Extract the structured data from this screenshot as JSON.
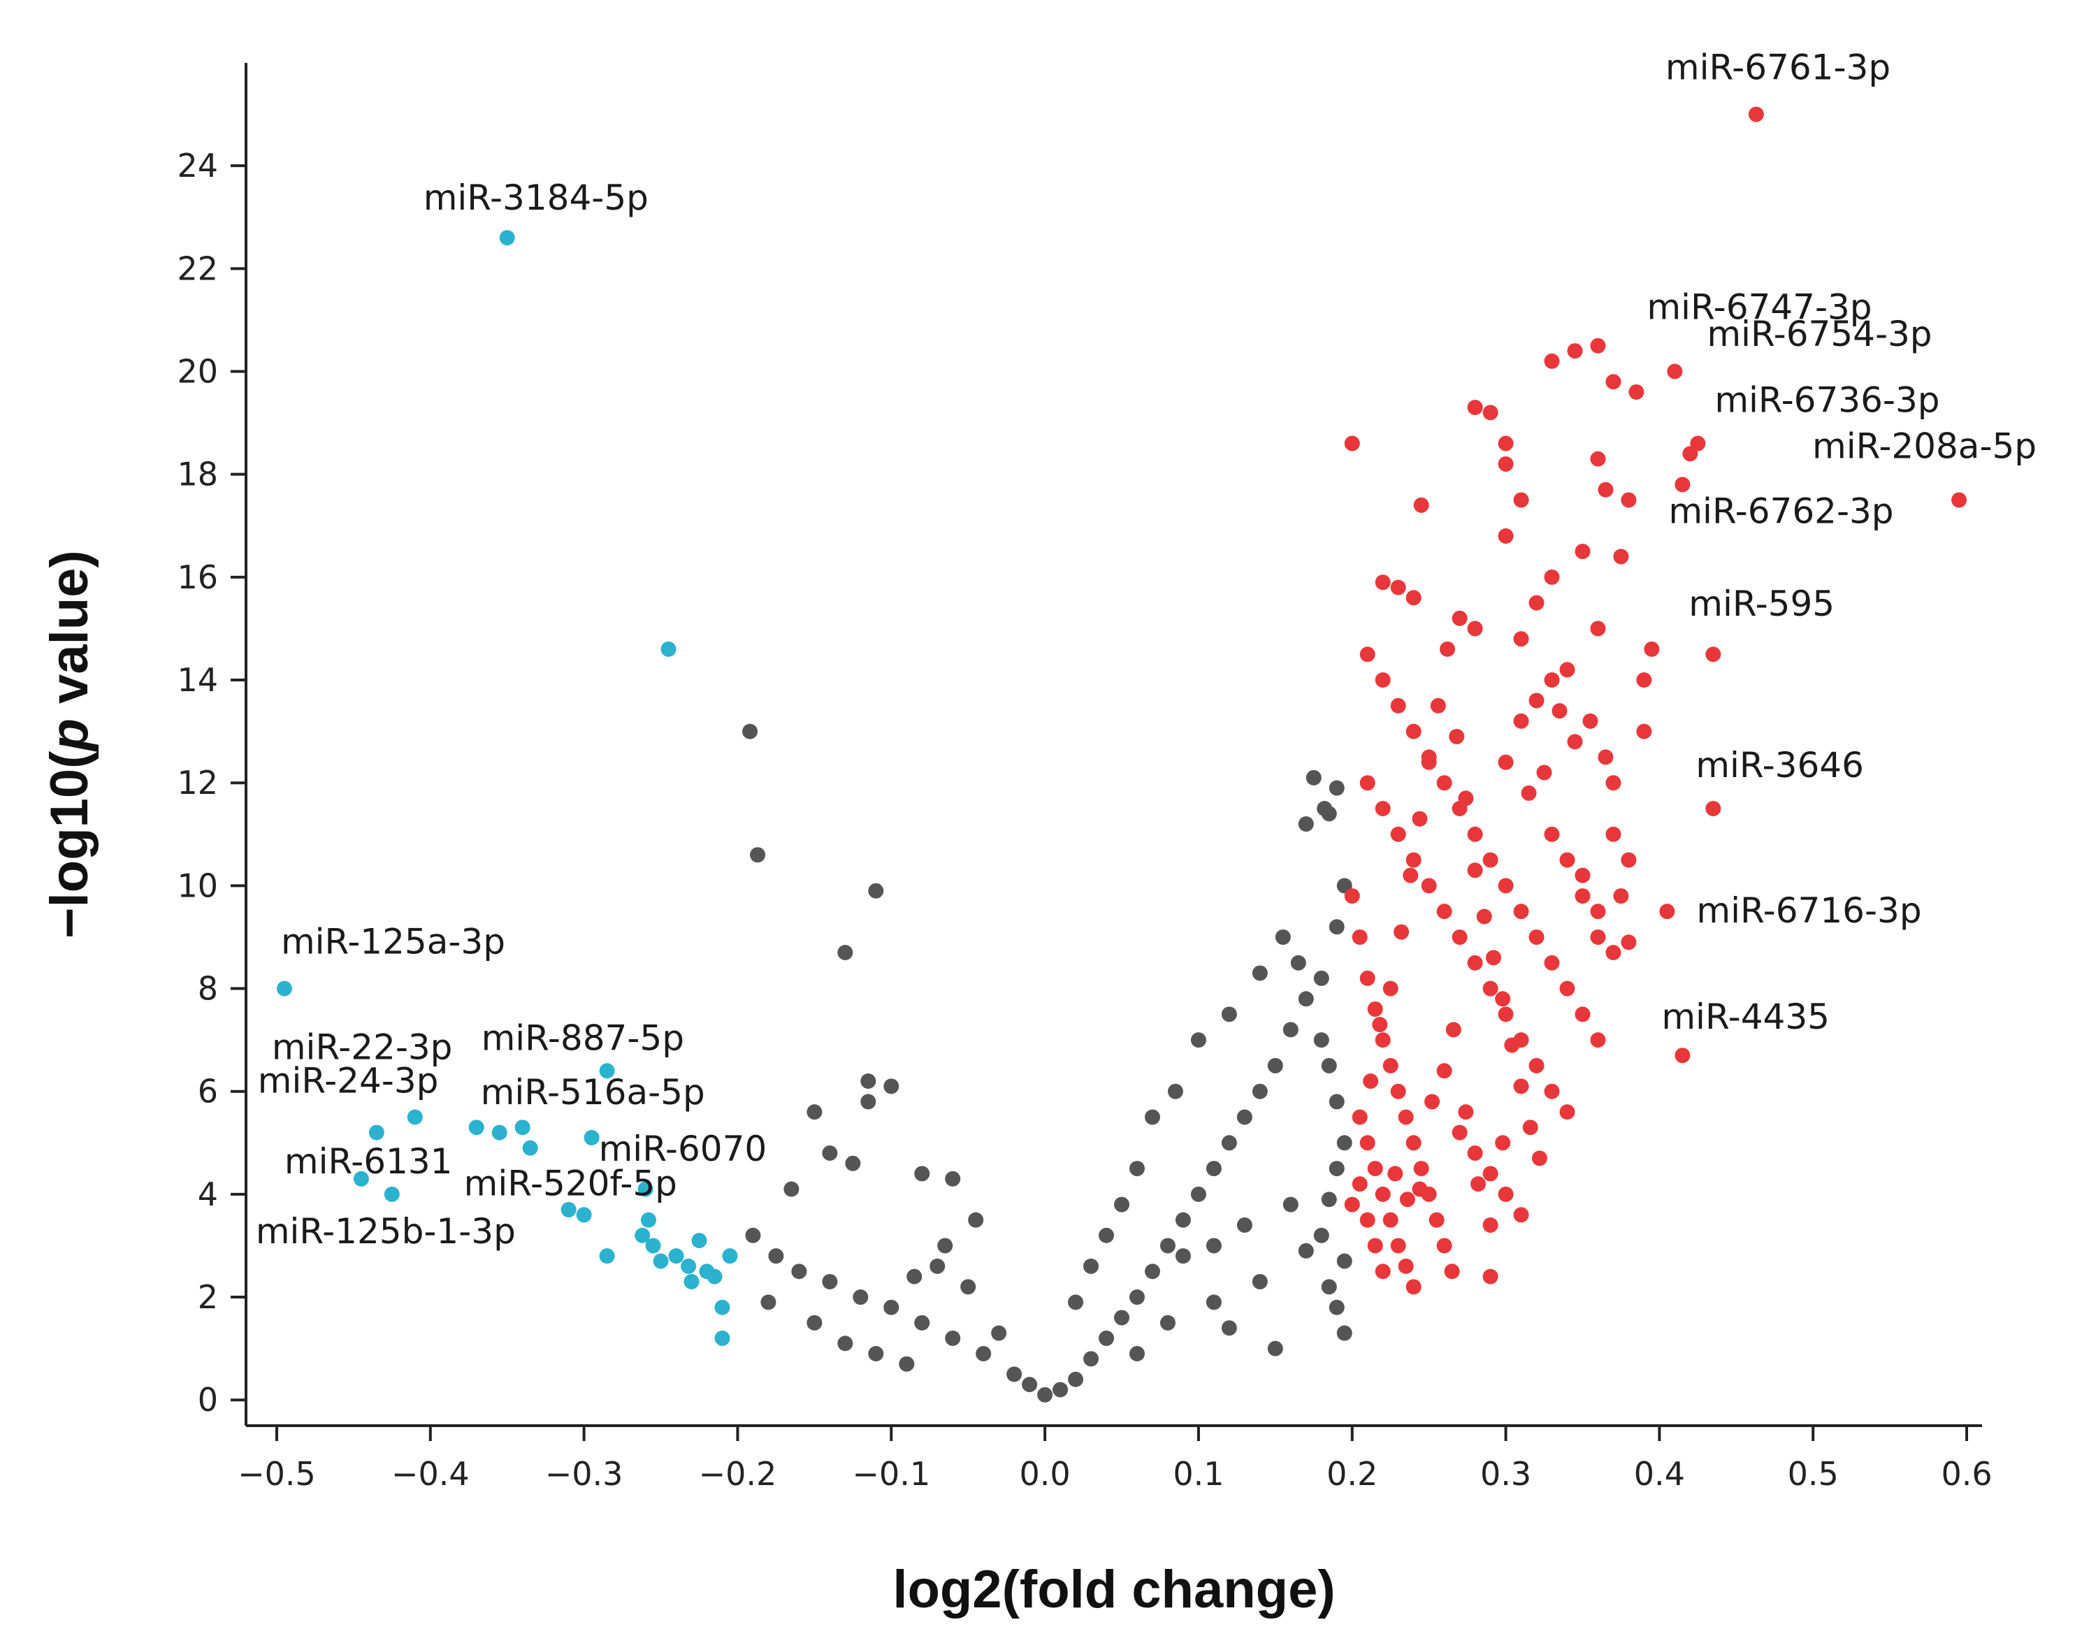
{
  "colors": {
    "up": "#e8373a",
    "down": "#2bb2cf",
    "ns": "#555555",
    "axis": "#222222"
  },
  "chart_data": {
    "type": "scatter",
    "title": "",
    "xlabel": "log2(fold change)",
    "ylabel_prefix": "−log10(",
    "ylabel_p": "p",
    "ylabel_suffix": " value)",
    "xlim": [
      -0.52,
      0.61
    ],
    "ylim": [
      -0.5,
      26
    ],
    "xticks": [
      -0.5,
      -0.4,
      -0.3,
      -0.2,
      -0.1,
      0.0,
      0.1,
      0.2,
      0.3,
      0.4,
      0.5,
      0.6
    ],
    "xtick_labels": [
      "−0.5",
      "−0.4",
      "−0.3",
      "−0.2",
      "−0.1",
      "0.0",
      "0.1",
      "0.2",
      "0.3",
      "0.4",
      "0.5",
      "0.6"
    ],
    "yticks": [
      0,
      2,
      4,
      6,
      8,
      10,
      12,
      14,
      16,
      18,
      20,
      22,
      24
    ],
    "ytick_labels": [
      "0",
      "2",
      "4",
      "6",
      "8",
      "10",
      "12",
      "14",
      "16",
      "18",
      "20",
      "22",
      "24"
    ],
    "series": [
      {
        "name": "down",
        "points": [
          [
            -0.35,
            22.6
          ],
          [
            -0.245,
            14.6
          ],
          [
            -0.495,
            8.0
          ],
          [
            -0.285,
            6.4
          ],
          [
            -0.41,
            5.5
          ],
          [
            -0.435,
            5.2
          ],
          [
            -0.37,
            5.3
          ],
          [
            -0.355,
            5.2
          ],
          [
            -0.34,
            5.3
          ],
          [
            -0.335,
            4.9
          ],
          [
            -0.295,
            5.1
          ],
          [
            -0.445,
            4.3
          ],
          [
            -0.425,
            4.0
          ],
          [
            -0.31,
            3.7
          ],
          [
            -0.3,
            3.6
          ],
          [
            -0.26,
            4.1
          ],
          [
            -0.258,
            3.5
          ],
          [
            -0.262,
            3.2
          ],
          [
            -0.255,
            3.0
          ],
          [
            -0.24,
            2.8
          ],
          [
            -0.232,
            2.6
          ],
          [
            -0.225,
            3.1
          ],
          [
            -0.22,
            2.5
          ],
          [
            -0.215,
            2.4
          ],
          [
            -0.21,
            1.8
          ],
          [
            -0.205,
            2.8
          ],
          [
            -0.21,
            1.2
          ],
          [
            -0.285,
            2.8
          ],
          [
            -0.25,
            2.7
          ],
          [
            -0.23,
            2.3
          ]
        ]
      },
      {
        "name": "ns",
        "points": [
          [
            -0.192,
            13.0
          ],
          [
            -0.187,
            10.6
          ],
          [
            -0.11,
            9.9
          ],
          [
            -0.13,
            8.7
          ],
          [
            -0.115,
            6.2
          ],
          [
            -0.1,
            6.1
          ],
          [
            -0.115,
            5.8
          ],
          [
            -0.15,
            5.6
          ],
          [
            -0.14,
            4.8
          ],
          [
            -0.125,
            4.6
          ],
          [
            -0.165,
            4.1
          ],
          [
            -0.08,
            4.4
          ],
          [
            -0.06,
            4.3
          ],
          [
            -0.19,
            3.2
          ],
          [
            -0.175,
            2.8
          ],
          [
            -0.16,
            2.5
          ],
          [
            -0.14,
            2.3
          ],
          [
            -0.12,
            2.0
          ],
          [
            -0.1,
            1.8
          ],
          [
            -0.08,
            1.5
          ],
          [
            -0.06,
            1.2
          ],
          [
            -0.04,
            0.9
          ],
          [
            -0.02,
            0.5
          ],
          [
            0.0,
            0.1
          ],
          [
            -0.01,
            0.3
          ],
          [
            0.01,
            0.2
          ],
          [
            0.02,
            0.4
          ],
          [
            0.03,
            0.8
          ],
          [
            0.04,
            1.2
          ],
          [
            0.05,
            1.6
          ],
          [
            0.06,
            2.0
          ],
          [
            0.07,
            2.5
          ],
          [
            0.08,
            3.0
          ],
          [
            0.09,
            3.5
          ],
          [
            0.1,
            4.0
          ],
          [
            0.11,
            4.5
          ],
          [
            0.12,
            5.0
          ],
          [
            0.13,
            5.5
          ],
          [
            0.14,
            6.0
          ],
          [
            0.15,
            6.5
          ],
          [
            0.16,
            7.2
          ],
          [
            0.17,
            7.8
          ],
          [
            0.18,
            8.2
          ],
          [
            0.155,
            9.0
          ],
          [
            0.165,
            8.5
          ],
          [
            0.14,
            8.3
          ],
          [
            0.12,
            7.5
          ],
          [
            0.1,
            7.0
          ],
          [
            0.085,
            6.0
          ],
          [
            0.07,
            5.5
          ],
          [
            0.06,
            4.5
          ],
          [
            0.05,
            3.8
          ],
          [
            0.04,
            3.2
          ],
          [
            0.03,
            2.6
          ],
          [
            0.02,
            1.9
          ],
          [
            0.175,
            12.1
          ],
          [
            0.19,
            11.9
          ],
          [
            0.185,
            11.4
          ],
          [
            0.17,
            11.2
          ],
          [
            0.182,
            11.5
          ],
          [
            0.195,
            10.0
          ],
          [
            0.19,
            9.2
          ],
          [
            0.18,
            7.0
          ],
          [
            0.185,
            6.5
          ],
          [
            0.19,
            5.8
          ],
          [
            0.195,
            5.0
          ],
          [
            0.19,
            4.5
          ],
          [
            0.185,
            3.9
          ],
          [
            0.18,
            3.2
          ],
          [
            0.195,
            2.7
          ],
          [
            0.185,
            2.2
          ],
          [
            0.19,
            1.8
          ],
          [
            0.195,
            1.3
          ],
          [
            0.15,
            1.0
          ],
          [
            0.12,
            1.4
          ],
          [
            -0.18,
            1.9
          ],
          [
            -0.15,
            1.5
          ],
          [
            -0.13,
            1.1
          ],
          [
            -0.11,
            0.9
          ],
          [
            -0.09,
            0.7
          ],
          [
            -0.07,
            2.6
          ],
          [
            -0.05,
            2.2
          ],
          [
            -0.03,
            1.3
          ],
          [
            0.09,
            2.8
          ],
          [
            0.11,
            3.0
          ],
          [
            0.13,
            3.4
          ],
          [
            0.16,
            3.8
          ],
          [
            0.17,
            2.9
          ],
          [
            0.14,
            2.3
          ],
          [
            0.11,
            1.9
          ],
          [
            0.08,
            1.5
          ],
          [
            0.06,
            0.9
          ],
          [
            -0.045,
            3.5
          ],
          [
            -0.065,
            3.0
          ],
          [
            -0.085,
            2.4
          ]
        ]
      },
      {
        "name": "up",
        "points": [
          [
            0.463,
            25.0
          ],
          [
            0.41,
            20.0
          ],
          [
            0.33,
            20.2
          ],
          [
            0.345,
            20.4
          ],
          [
            0.36,
            20.5
          ],
          [
            0.37,
            19.8
          ],
          [
            0.385,
            19.6
          ],
          [
            0.42,
            18.4
          ],
          [
            0.425,
            18.6
          ],
          [
            0.415,
            17.8
          ],
          [
            0.595,
            17.5
          ],
          [
            0.28,
            19.3
          ],
          [
            0.29,
            19.2
          ],
          [
            0.3,
            18.6
          ],
          [
            0.3,
            18.2
          ],
          [
            0.2,
            18.6
          ],
          [
            0.36,
            18.3
          ],
          [
            0.31,
            17.5
          ],
          [
            0.245,
            17.4
          ],
          [
            0.365,
            17.7
          ],
          [
            0.38,
            17.5
          ],
          [
            0.3,
            16.8
          ],
          [
            0.35,
            16.5
          ],
          [
            0.375,
            16.4
          ],
          [
            0.435,
            14.5
          ],
          [
            0.435,
            11.5
          ],
          [
            0.405,
            9.5
          ],
          [
            0.415,
            6.7
          ],
          [
            0.34,
            5.6
          ],
          [
            0.29,
            2.4
          ],
          [
            0.22,
            15.9
          ],
          [
            0.23,
            15.8
          ],
          [
            0.24,
            15.6
          ],
          [
            0.27,
            15.2
          ],
          [
            0.28,
            15.0
          ],
          [
            0.31,
            14.8
          ],
          [
            0.32,
            15.5
          ],
          [
            0.33,
            16.0
          ],
          [
            0.36,
            15.0
          ],
          [
            0.39,
            14.0
          ],
          [
            0.21,
            14.5
          ],
          [
            0.22,
            14.0
          ],
          [
            0.23,
            13.5
          ],
          [
            0.24,
            13.0
          ],
          [
            0.25,
            12.5
          ],
          [
            0.26,
            12.0
          ],
          [
            0.27,
            11.5
          ],
          [
            0.28,
            11.0
          ],
          [
            0.29,
            10.5
          ],
          [
            0.3,
            10.0
          ],
          [
            0.31,
            9.5
          ],
          [
            0.32,
            9.0
          ],
          [
            0.33,
            8.5
          ],
          [
            0.34,
            8.0
          ],
          [
            0.35,
            7.5
          ],
          [
            0.36,
            7.0
          ],
          [
            0.37,
            11.0
          ],
          [
            0.38,
            10.5
          ],
          [
            0.375,
            9.8
          ],
          [
            0.365,
            12.5
          ],
          [
            0.355,
            13.2
          ],
          [
            0.345,
            12.8
          ],
          [
            0.335,
            13.4
          ],
          [
            0.325,
            12.2
          ],
          [
            0.315,
            11.8
          ],
          [
            0.21,
            12.0
          ],
          [
            0.22,
            11.5
          ],
          [
            0.23,
            11.0
          ],
          [
            0.24,
            10.5
          ],
          [
            0.25,
            10.0
          ],
          [
            0.26,
            9.5
          ],
          [
            0.27,
            9.0
          ],
          [
            0.28,
            8.5
          ],
          [
            0.29,
            8.0
          ],
          [
            0.3,
            7.5
          ],
          [
            0.31,
            7.0
          ],
          [
            0.32,
            6.5
          ],
          [
            0.33,
            6.0
          ],
          [
            0.2,
            9.8
          ],
          [
            0.205,
            9.0
          ],
          [
            0.21,
            8.2
          ],
          [
            0.215,
            7.6
          ],
          [
            0.22,
            7.0
          ],
          [
            0.225,
            6.5
          ],
          [
            0.23,
            6.0
          ],
          [
            0.235,
            5.5
          ],
          [
            0.24,
            5.0
          ],
          [
            0.245,
            4.5
          ],
          [
            0.25,
            4.0
          ],
          [
            0.255,
            3.5
          ],
          [
            0.26,
            3.0
          ],
          [
            0.265,
            2.5
          ],
          [
            0.27,
            5.2
          ],
          [
            0.28,
            4.8
          ],
          [
            0.29,
            4.4
          ],
          [
            0.3,
            4.0
          ],
          [
            0.31,
            3.6
          ],
          [
            0.205,
            5.5
          ],
          [
            0.21,
            5.0
          ],
          [
            0.215,
            4.5
          ],
          [
            0.22,
            4.0
          ],
          [
            0.225,
            3.5
          ],
          [
            0.23,
            3.0
          ],
          [
            0.235,
            2.6
          ],
          [
            0.24,
            2.2
          ],
          [
            0.21,
            3.5
          ],
          [
            0.215,
            3.0
          ],
          [
            0.22,
            2.5
          ],
          [
            0.205,
            4.2
          ],
          [
            0.2,
            3.8
          ],
          [
            0.212,
            6.2
          ],
          [
            0.218,
            7.3
          ],
          [
            0.225,
            8.0
          ],
          [
            0.232,
            9.1
          ],
          [
            0.238,
            10.2
          ],
          [
            0.244,
            11.3
          ],
          [
            0.25,
            12.4
          ],
          [
            0.256,
            13.5
          ],
          [
            0.262,
            14.6
          ],
          [
            0.268,
            12.9
          ],
          [
            0.274,
            11.7
          ],
          [
            0.28,
            10.3
          ],
          [
            0.286,
            9.4
          ],
          [
            0.292,
            8.6
          ],
          [
            0.298,
            7.8
          ],
          [
            0.304,
            6.9
          ],
          [
            0.31,
            6.1
          ],
          [
            0.316,
            5.3
          ],
          [
            0.322,
            4.7
          ],
          [
            0.228,
            4.4
          ],
          [
            0.236,
            3.9
          ],
          [
            0.244,
            4.1
          ],
          [
            0.252,
            5.8
          ],
          [
            0.26,
            6.4
          ],
          [
            0.266,
            7.2
          ],
          [
            0.274,
            5.6
          ],
          [
            0.282,
            4.2
          ],
          [
            0.29,
            3.4
          ],
          [
            0.298,
            5.0
          ],
          [
            0.35,
            10.2
          ],
          [
            0.36,
            9.0
          ],
          [
            0.37,
            8.7
          ],
          [
            0.38,
            8.9
          ],
          [
            0.39,
            13.0
          ],
          [
            0.395,
            14.6
          ],
          [
            0.34,
            14.2
          ],
          [
            0.33,
            14.0
          ],
          [
            0.32,
            13.6
          ],
          [
            0.31,
            13.2
          ],
          [
            0.3,
            12.4
          ],
          [
            0.33,
            11.0
          ],
          [
            0.34,
            10.5
          ],
          [
            0.35,
            9.8
          ],
          [
            0.36,
            9.5
          ],
          [
            0.37,
            12.0
          ]
        ]
      }
    ],
    "annotations": [
      {
        "label": "miR-6761-3p",
        "x": 0.463,
        "y": 25.0
      },
      {
        "label": "miR-3184-5p",
        "x": -0.35,
        "y": 22.6
      },
      {
        "label": "miR-6747-3p",
        "x": 0.41,
        "y": 20.0
      },
      {
        "label": "miR-6754-3p",
        "x": 0.415,
        "y": 20.2
      },
      {
        "label": "miR-6736-3p",
        "x": 0.42,
        "y": 18.6
      },
      {
        "label": "miR-208a-5p",
        "x": 0.595,
        "y": 17.5
      },
      {
        "label": "miR-6762-3p",
        "x": 0.415,
        "y": 17.8
      },
      {
        "label": "miR-595",
        "x": 0.435,
        "y": 14.5
      },
      {
        "label": "miR-3646",
        "x": 0.435,
        "y": 11.5
      },
      {
        "label": "miR-6716-3p",
        "x": 0.405,
        "y": 9.5
      },
      {
        "label": "miR-4435",
        "x": 0.415,
        "y": 6.7
      },
      {
        "label": "miR-125a-3p",
        "x": -0.495,
        "y": 8.0
      },
      {
        "label": "miR-22-3p",
        "x": -0.435,
        "y": 5.2
      },
      {
        "label": "miR-887-5p",
        "x": -0.285,
        "y": 6.4
      },
      {
        "label": "miR-24-3p",
        "x": -0.41,
        "y": 5.5
      },
      {
        "label": "miR-516a-5p",
        "x": -0.34,
        "y": 5.3
      },
      {
        "label": "miR-6070",
        "x": -0.295,
        "y": 5.1
      },
      {
        "label": "miR-6131",
        "x": -0.445,
        "y": 4.3
      },
      {
        "label": "miR-520f-5p",
        "x": -0.335,
        "y": 4.9
      },
      {
        "label": "miR-125b-1-3p",
        "x": -0.425,
        "y": 4.0
      }
    ]
  }
}
